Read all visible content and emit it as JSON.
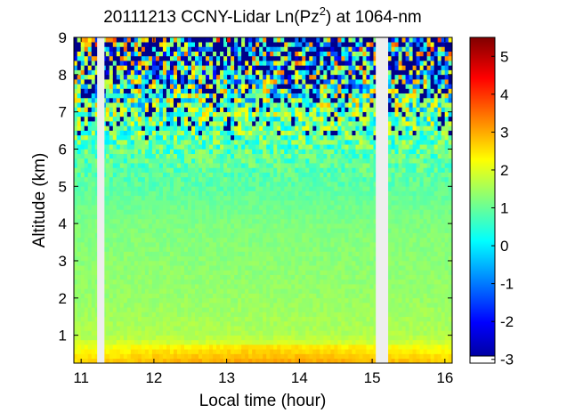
{
  "chart_data": {
    "type": "heatmap",
    "title_parts": {
      "prefix": "20111213 CCNY-Lidar Ln(Pz",
      "superscript": "2",
      "suffix": ") at 1064-nm"
    },
    "xlabel": "Local time (hour)",
    "ylabel": "Altitude (km)",
    "xlim": [
      10.9,
      16.1
    ],
    "ylim": [
      0.25,
      9.0
    ],
    "x_ticks": [
      "11",
      "12",
      "13",
      "14",
      "15",
      "16"
    ],
    "y_ticks": [
      "1",
      "2",
      "3",
      "4",
      "5",
      "6",
      "7",
      "8",
      "9"
    ],
    "colorbar": {
      "range": [
        -3.1,
        5.5
      ],
      "ticks": [
        "-3",
        "-2",
        "-1",
        "0",
        "1",
        "2",
        "3",
        "4",
        "5"
      ],
      "colormap": "jet"
    },
    "data_gaps_hours": [
      [
        11.22,
        11.32
      ],
      [
        15.05,
        15.22
      ]
    ],
    "profile": [
      {
        "altitude_km": 0.3,
        "value": 2.6
      },
      {
        "altitude_km": 0.6,
        "value": 2.2
      },
      {
        "altitude_km": 1.0,
        "value": 1.6
      },
      {
        "altitude_km": 2.0,
        "value": 1.4
      },
      {
        "altitude_km": 3.0,
        "value": 1.3
      },
      {
        "altitude_km": 4.0,
        "value": 1.2
      },
      {
        "altitude_km": 5.0,
        "value": 0.9
      },
      {
        "altitude_km": 6.0,
        "value": 0.9
      },
      {
        "altitude_km": 7.0,
        "value": 1.1
      },
      {
        "altitude_km": 8.0,
        "value": 0.6
      },
      {
        "altitude_km": 9.0,
        "value": 0.2
      }
    ],
    "grid": false
  }
}
